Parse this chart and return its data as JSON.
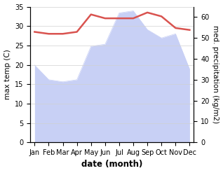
{
  "months": [
    "Jan",
    "Feb",
    "Mar",
    "Apr",
    "May",
    "Jun",
    "Jul",
    "Aug",
    "Sep",
    "Oct",
    "Nov",
    "Dec"
  ],
  "temp": [
    28.5,
    28.0,
    28.0,
    28.5,
    33.0,
    32.0,
    32.0,
    32.0,
    33.5,
    32.5,
    29.5,
    29.0
  ],
  "precip": [
    37,
    30,
    29,
    30,
    46,
    47,
    62,
    63,
    54,
    50,
    52,
    35
  ],
  "temp_color": "#d9534f",
  "precip_fill_color": "#c8d0f5",
  "precip_line_color": "#c8d0f5",
  "ylabel_left": "max temp (C)",
  "ylabel_right": "med. precipitation (kg/m2)",
  "xlabel": "date (month)",
  "ylim_left": [
    0,
    35
  ],
  "ylim_right": [
    0,
    65
  ],
  "yticks_left": [
    0,
    5,
    10,
    15,
    20,
    25,
    30,
    35
  ],
  "yticks_right": [
    0,
    10,
    20,
    30,
    40,
    50,
    60
  ],
  "background_color": "#ffffff",
  "grid_color": "#d0d0d0",
  "label_fontsize": 7.5,
  "tick_fontsize": 7.0,
  "xlabel_fontsize": 8.5
}
